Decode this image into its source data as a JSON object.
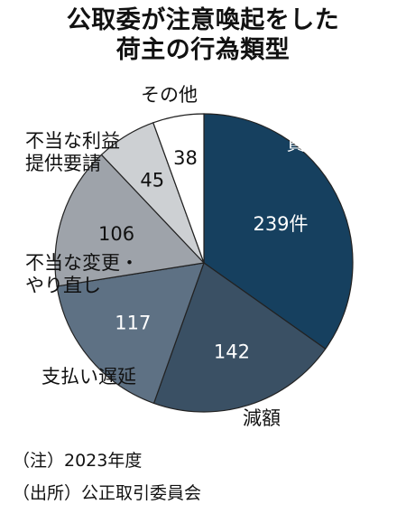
{
  "title": {
    "line1": "公取委が注意喚起をした",
    "line2": "荷主の行為類型"
  },
  "chart_data": {
    "type": "pie",
    "unit": "件",
    "slices": [
      {
        "label": "買いたたき",
        "value": 239,
        "value_text": "239件",
        "color": "#16405f",
        "text_color": "#ffffff"
      },
      {
        "label": "減額",
        "value": 142,
        "value_text": "142",
        "color": "#3a5064",
        "text_color": "#ffffff"
      },
      {
        "label": "支払い遅延",
        "value": 117,
        "value_text": "117",
        "color": "#5e7184",
        "text_color": "#ffffff"
      },
      {
        "label": "不当な変更・やり直し",
        "value": 106,
        "value_text": "106",
        "color": "#9ea3aa",
        "text_color": "#111111"
      },
      {
        "label": "不当な利益提供要請",
        "value": 45,
        "value_text": "45",
        "color": "#cdd0d3",
        "text_color": "#111111"
      },
      {
        "label": "その他",
        "value": 38,
        "value_text": "38",
        "color": "#ffffff",
        "text_color": "#111111"
      }
    ]
  },
  "footnotes": {
    "note": "（注）2023年度",
    "source": "（出所）公正取引委員会"
  }
}
